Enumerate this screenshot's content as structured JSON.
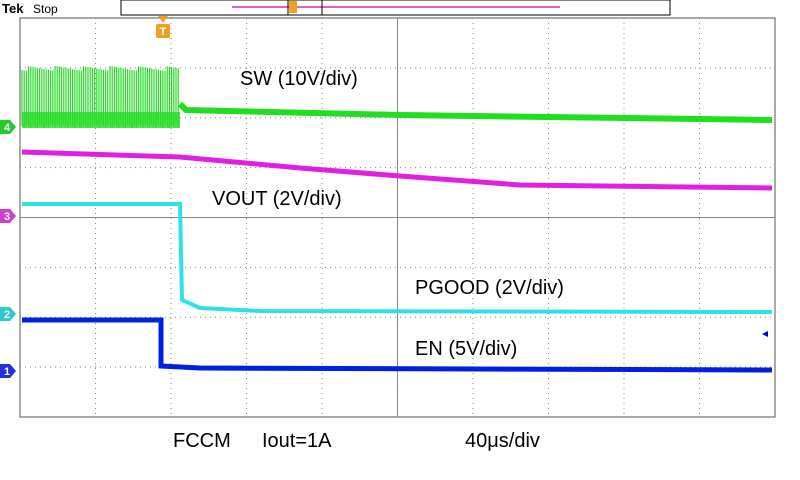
{
  "header": {
    "brand": "Tek",
    "status": "Stop",
    "trigger_marker": "T"
  },
  "channels": [
    {
      "marker": "4",
      "label": "SW (10V/div)"
    },
    {
      "marker": "3",
      "label": "VOUT (2V/div)"
    },
    {
      "marker": "2",
      "label": "PGOOD (2V/div)"
    },
    {
      "marker": "1",
      "label": "EN (5V/div)"
    }
  ],
  "footer": {
    "mode": "FCCM",
    "load": "Iout=1A",
    "timebase": "40μs/div"
  }
}
